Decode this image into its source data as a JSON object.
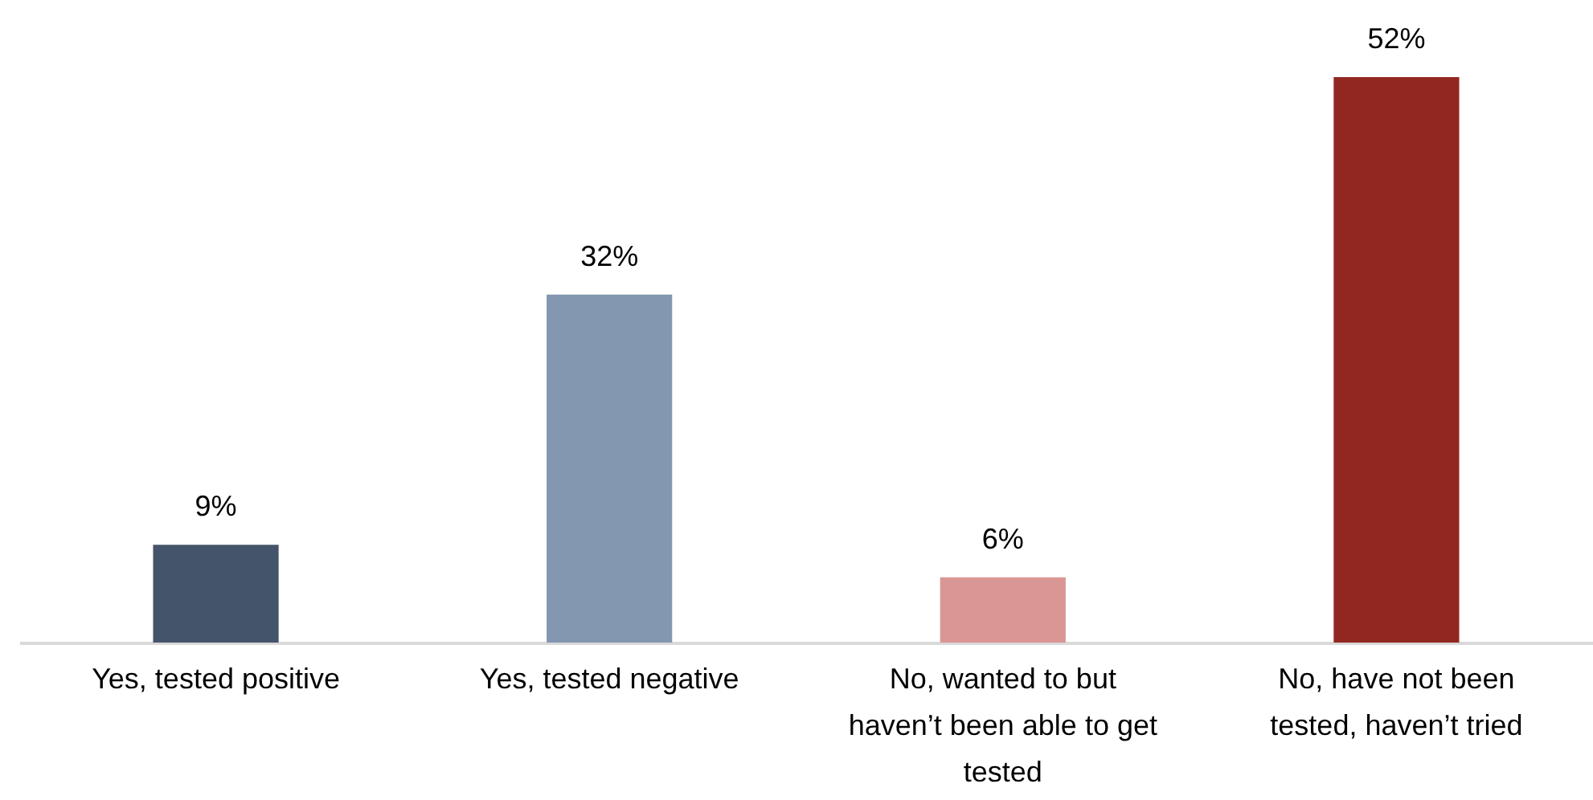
{
  "chart_data": {
    "type": "bar",
    "categories": [
      "Yes, tested positive",
      "Yes, tested negative",
      "No, wanted to but haven’t been able to get tested",
      "No, have not been tested, haven’t tried"
    ],
    "values": [
      9,
      32,
      6,
      52
    ],
    "colors": [
      "#44546a",
      "#8497b0",
      "#da9694",
      "#922722"
    ],
    "value_labels": [
      "9%",
      "32%",
      "6%",
      "52%"
    ]
  }
}
